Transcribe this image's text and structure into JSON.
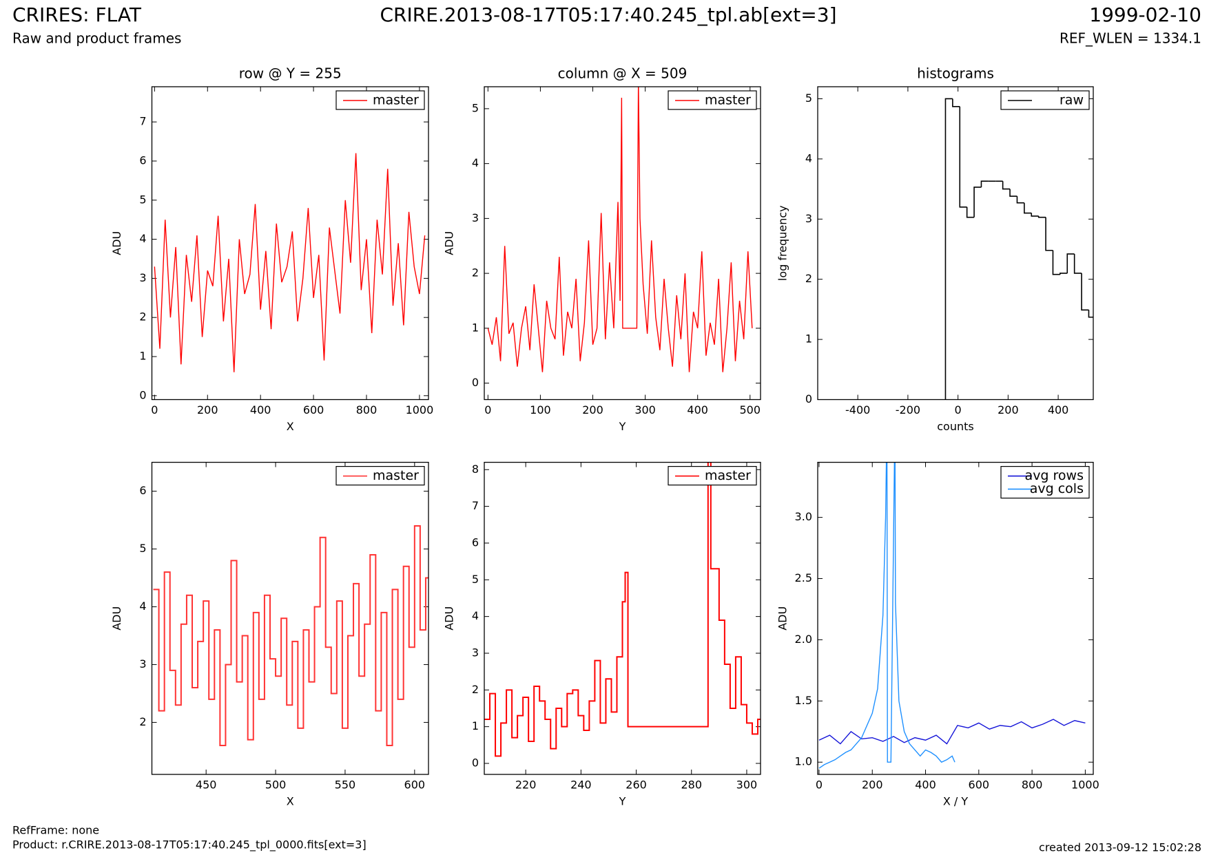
{
  "header": {
    "title": "CRIRES: FLAT",
    "file": "CRIRE.2013-08-17T05:17:40.245_tpl.ab[ext=3]",
    "date": "1999-02-10",
    "subtitle": "Raw and product frames",
    "ref_wlen": "REF_WLEN = 1334.1"
  },
  "footer": {
    "ref_frame": "RefFrame: none",
    "product": "Product: r.CRIRE.2013-08-17T05:17:40.245_tpl_0000.fits[ext=3]",
    "created": "created 2013-09-12 15:02:28"
  },
  "chart_data": [
    {
      "type": "line",
      "title": "row @ Y = 255",
      "xlabel": "X",
      "ylabel": "ADU",
      "legend": "upper right",
      "xlim": [
        -10,
        1034
      ],
      "ylim": [
        -0.1,
        7.9
      ],
      "xticks": [
        0,
        200,
        400,
        600,
        800,
        1000
      ],
      "yticks": [
        0,
        1,
        2,
        3,
        4,
        5,
        6,
        7
      ],
      "series": [
        {
          "name": "master",
          "color": "#ff0000",
          "x": [
            0,
            20,
            40,
            60,
            80,
            100,
            120,
            140,
            160,
            180,
            200,
            220,
            240,
            260,
            280,
            300,
            320,
            340,
            360,
            380,
            400,
            420,
            440,
            460,
            480,
            500,
            520,
            540,
            560,
            580,
            600,
            620,
            640,
            660,
            680,
            700,
            720,
            740,
            760,
            780,
            800,
            820,
            840,
            860,
            880,
            900,
            920,
            940,
            960,
            980,
            1000,
            1020
          ],
          "values": [
            3.3,
            1.2,
            4.5,
            2.0,
            3.8,
            0.8,
            3.6,
            2.4,
            4.1,
            1.5,
            3.2,
            2.8,
            4.6,
            1.9,
            3.5,
            0.6,
            4.0,
            2.6,
            3.1,
            4.9,
            2.2,
            3.7,
            1.7,
            4.4,
            2.9,
            3.3,
            4.2,
            1.9,
            3.0,
            4.8,
            2.5,
            3.6,
            0.9,
            4.3,
            3.2,
            2.1,
            5.0,
            3.4,
            6.2,
            2.7,
            4.0,
            1.6,
            4.5,
            3.1,
            5.8,
            2.3,
            3.9,
            1.8,
            4.7,
            3.3,
            2.6,
            4.1
          ]
        }
      ]
    },
    {
      "type": "line",
      "title": "column @ X = 509",
      "xlabel": "Y",
      "ylabel": "ADU",
      "legend": "upper right",
      "xlim": [
        -7,
        520
      ],
      "ylim": [
        -0.3,
        5.4
      ],
      "xticks": [
        0,
        100,
        200,
        300,
        400,
        500
      ],
      "yticks": [
        0,
        1,
        2,
        3,
        4,
        5
      ],
      "series": [
        {
          "name": "master",
          "color": "#ff0000",
          "x": [
            0,
            8,
            16,
            24,
            32,
            40,
            48,
            56,
            64,
            72,
            80,
            88,
            96,
            104,
            112,
            120,
            128,
            136,
            144,
            152,
            160,
            168,
            176,
            184,
            192,
            200,
            208,
            216,
            224,
            232,
            240,
            248,
            252,
            255,
            257,
            270,
            284,
            287,
            290,
            296,
            304,
            312,
            320,
            328,
            336,
            344,
            352,
            360,
            368,
            376,
            384,
            392,
            400,
            408,
            416,
            424,
            432,
            440,
            448,
            456,
            464,
            472,
            480,
            488,
            496,
            504
          ],
          "values": [
            1.0,
            0.7,
            1.2,
            0.4,
            2.5,
            0.9,
            1.1,
            0.3,
            1.0,
            1.4,
            0.6,
            1.8,
            1.0,
            0.2,
            1.5,
            1.0,
            0.8,
            2.3,
            0.5,
            1.3,
            1.0,
            1.9,
            0.4,
            1.1,
            2.6,
            0.7,
            1.0,
            3.1,
            0.8,
            2.2,
            1.0,
            3.3,
            1.5,
            5.2,
            1.0,
            1.0,
            1.0,
            5.5,
            3.0,
            1.8,
            0.9,
            2.6,
            1.2,
            0.6,
            1.9,
            1.0,
            0.3,
            1.6,
            0.8,
            2.0,
            0.2,
            1.3,
            1.0,
            2.4,
            0.5,
            1.1,
            0.7,
            1.9,
            0.2,
            1.0,
            2.2,
            0.4,
            1.5,
            0.8,
            2.4,
            1.0
          ]
        }
      ]
    },
    {
      "type": "histogram",
      "title": "histograms",
      "xlabel": "counts",
      "ylabel": "log frequency",
      "legend": "upper right",
      "xlim": [
        -560,
        540
      ],
      "ylim": [
        0,
        5.2
      ],
      "xticks": [
        -400,
        -200,
        0,
        200,
        400
      ],
      "yticks": [
        0,
        1,
        2,
        3,
        4,
        5
      ],
      "series": [
        {
          "name": "raw",
          "color": "#000000",
          "bins": [
            -50,
            -21.4,
            7.2,
            35.8,
            64.4,
            93,
            121.6,
            150.2,
            178.8,
            207.4,
            236,
            264.6,
            293.2,
            321.8,
            350.4,
            379,
            407.6,
            436.2,
            464.8,
            493.4,
            522,
            550.6
          ],
          "values": [
            5.0,
            4.87,
            3.2,
            3.03,
            3.53,
            3.63,
            3.63,
            3.63,
            3.5,
            3.38,
            3.27,
            3.1,
            3.05,
            3.03,
            2.48,
            2.08,
            2.1,
            2.42,
            2.1,
            1.49,
            1.37
          ]
        }
      ]
    },
    {
      "type": "step",
      "xlabel": "X",
      "ylabel": "ADU",
      "legend": "upper right",
      "xlim": [
        411,
        610
      ],
      "ylim": [
        1.1,
        6.5
      ],
      "xticks": [
        450,
        500,
        550,
        600
      ],
      "yticks": [
        2,
        3,
        4,
        5,
        6
      ],
      "series": [
        {
          "name": "master",
          "color": "#ff3333",
          "x": [
            412,
            416,
            420,
            424,
            428,
            432,
            436,
            440,
            444,
            448,
            452,
            456,
            460,
            464,
            468,
            472,
            476,
            480,
            484,
            488,
            492,
            496,
            500,
            504,
            508,
            512,
            516,
            520,
            524,
            528,
            532,
            536,
            540,
            544,
            548,
            552,
            556,
            560,
            564,
            568,
            572,
            576,
            580,
            584,
            588,
            592,
            596,
            600,
            604,
            608
          ],
          "values": [
            4.3,
            2.2,
            4.6,
            2.9,
            2.3,
            3.7,
            4.2,
            2.6,
            3.4,
            4.1,
            2.4,
            3.6,
            1.6,
            3.0,
            4.8,
            2.7,
            3.5,
            1.7,
            3.9,
            2.4,
            4.2,
            3.1,
            2.8,
            3.8,
            2.3,
            3.4,
            1.9,
            3.6,
            2.7,
            4.0,
            5.2,
            3.3,
            2.5,
            4.1,
            1.9,
            3.5,
            4.4,
            2.8,
            3.7,
            4.9,
            2.2,
            3.9,
            1.6,
            4.3,
            2.4,
            4.7,
            3.3,
            5.4,
            3.6,
            4.5
          ]
        }
      ]
    },
    {
      "type": "step",
      "xlabel": "Y",
      "ylabel": "ADU",
      "legend": "upper right",
      "xlim": [
        205,
        305
      ],
      "ylim": [
        -0.3,
        8.2
      ],
      "xticks": [
        220,
        240,
        260,
        280,
        300
      ],
      "yticks": [
        0,
        1,
        2,
        3,
        4,
        5,
        6,
        7,
        8
      ],
      "series": [
        {
          "name": "master",
          "color": "#ff0000",
          "x": [
            205,
            207,
            209,
            211,
            213,
            215,
            217,
            219,
            221,
            223,
            225,
            227,
            229,
            231,
            233,
            235,
            237,
            239,
            241,
            243,
            245,
            247,
            249,
            251,
            253,
            255,
            256,
            257,
            286,
            287,
            288,
            290,
            292,
            294,
            296,
            298,
            300,
            302,
            304
          ],
          "values": [
            1.2,
            1.9,
            0.2,
            1.1,
            2.0,
            0.7,
            1.3,
            1.8,
            0.6,
            2.1,
            1.7,
            1.2,
            0.4,
            1.5,
            1.0,
            1.9,
            2.0,
            1.3,
            0.9,
            1.7,
            2.8,
            1.1,
            2.3,
            1.4,
            2.9,
            4.4,
            5.2,
            1.0,
            8.5,
            5.3,
            5.3,
            3.9,
            2.7,
            1.5,
            2.9,
            1.6,
            1.1,
            0.8,
            1.2
          ]
        }
      ]
    },
    {
      "type": "line",
      "xlabel": "X / Y",
      "ylabel": "ADU",
      "legend": "upper right",
      "xlim": [
        -5,
        1030
      ],
      "ylim": [
        0.9,
        3.45
      ],
      "xticks": [
        0,
        200,
        400,
        600,
        800,
        1000
      ],
      "yticks": [
        {
          "value": 1,
          "label": "1.0"
        },
        1.5,
        {
          "value": 2,
          "label": "2.0"
        },
        2.5,
        {
          "value": 3,
          "label": "3.0"
        }
      ],
      "series": [
        {
          "name": "avg rows",
          "color": "#1414d8",
          "x": [
            0,
            40,
            80,
            120,
            160,
            200,
            240,
            280,
            320,
            360,
            400,
            440,
            480,
            520,
            560,
            600,
            640,
            680,
            720,
            760,
            800,
            840,
            880,
            920,
            960,
            1000
          ],
          "values": [
            1.18,
            1.22,
            1.15,
            1.25,
            1.19,
            1.2,
            1.17,
            1.21,
            1.16,
            1.2,
            1.18,
            1.22,
            1.15,
            1.3,
            1.28,
            1.32,
            1.27,
            1.3,
            1.29,
            1.33,
            1.28,
            1.31,
            1.35,
            1.3,
            1.34,
            1.32
          ]
        },
        {
          "name": "avg cols",
          "color": "#1e90ff",
          "x": [
            0,
            20,
            40,
            60,
            80,
            100,
            120,
            140,
            160,
            180,
            200,
            220,
            240,
            250,
            255,
            257,
            270,
            285,
            287,
            300,
            320,
            340,
            360,
            380,
            400,
            420,
            440,
            460,
            480,
            500,
            510
          ],
          "values": [
            0.95,
            0.98,
            1.0,
            1.02,
            1.05,
            1.08,
            1.1,
            1.15,
            1.2,
            1.3,
            1.4,
            1.6,
            2.2,
            3.0,
            3.8,
            1.0,
            1.0,
            3.8,
            2.3,
            1.5,
            1.25,
            1.15,
            1.1,
            1.05,
            1.1,
            1.08,
            1.05,
            1.0,
            1.02,
            1.05,
            1.0
          ]
        }
      ]
    }
  ]
}
